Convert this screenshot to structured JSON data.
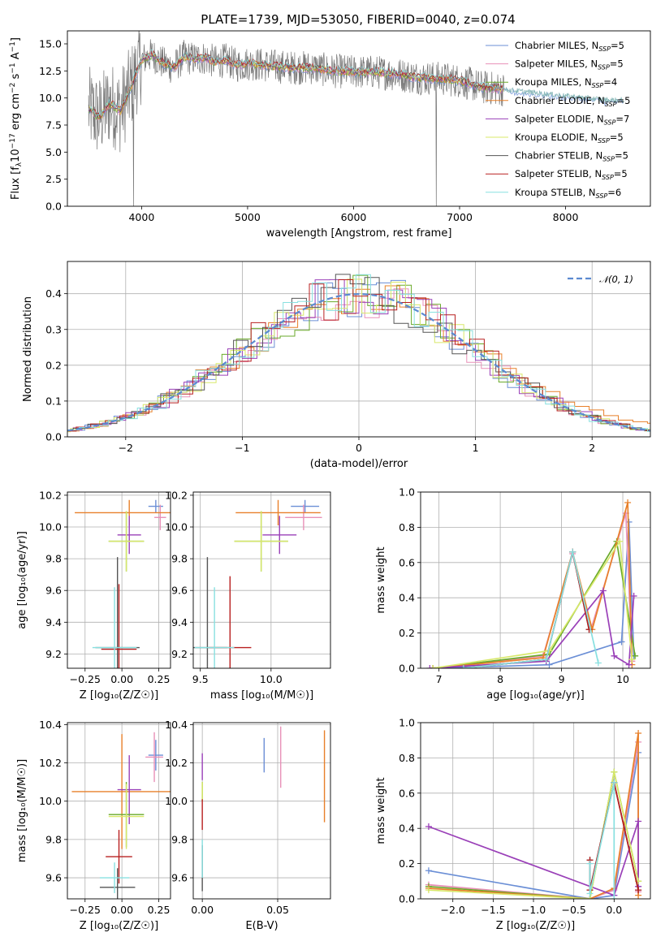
{
  "figure": {
    "title": "PLATE=1739, MJD=53050, FIBERID=0040, z=0.074"
  },
  "legend_entries": [
    {
      "name": "Chabrier MILES, N",
      "sub": "SSP",
      "val": "=5",
      "color": "#6b8fd6"
    },
    {
      "name": "Salpeter MILES, N",
      "sub": "SSP",
      "val": "=5",
      "color": "#e890b8"
    },
    {
      "name": "Kroupa MILES, N",
      "sub": "SSP",
      "val": "=4",
      "color": "#6aaa2a"
    },
    {
      "name": "Chabrier ELODIE, N",
      "sub": "SSP",
      "val": "=5",
      "color": "#e8802a"
    },
    {
      "name": "Salpeter ELODIE, N",
      "sub": "SSP",
      "val": "=7",
      "color": "#9a40b8"
    },
    {
      "name": "Kroupa ELODIE, N",
      "sub": "SSP",
      "val": "=5",
      "color": "#d8e86a"
    },
    {
      "name": "Chabrier STELIB, N",
      "sub": "SSP",
      "val": "=5",
      "color": "#555555"
    },
    {
      "name": "Salpeter STELIB, N",
      "sub": "SSP",
      "val": "=5",
      "color": "#b82020"
    },
    {
      "name": "Kroupa STELIB, N",
      "sub": "SSP",
      "val": "=6",
      "color": "#88e0e0"
    }
  ],
  "chart_data": [
    {
      "id": "spectrum",
      "type": "line",
      "xlabel": "wavelength [Angstrom, rest frame]",
      "ylabel_parts": [
        "Flux [f",
        "λ",
        "10",
        "−17",
        " erg cm",
        "−2",
        " s",
        "−1",
        " A",
        "−1",
        "]"
      ],
      "xlim": [
        3300,
        8800
      ],
      "ylim": [
        0,
        16.2
      ],
      "xticks": [
        4000,
        5000,
        6000,
        7000,
        8000
      ],
      "yticks": [
        0.0,
        2.5,
        5.0,
        7.5,
        10.0,
        12.5,
        15.0
      ],
      "model_curve": {
        "x": [
          3500,
          3600,
          3700,
          3800,
          3900,
          4000,
          4100,
          4200,
          4300,
          4400,
          4500,
          4600,
          4700,
          4800,
          4900,
          5000,
          5200,
          5400,
          5600,
          5800,
          6000,
          6200,
          6400,
          6600,
          6800,
          7000,
          7200,
          7400,
          7600,
          7800,
          8000,
          8200,
          8400
        ],
        "y": [
          9.0,
          8.2,
          9.5,
          8.8,
          11.0,
          13.5,
          14.0,
          13.2,
          12.8,
          13.8,
          13.6,
          13.7,
          13.3,
          13.5,
          13.0,
          13.2,
          13.0,
          12.8,
          12.8,
          12.5,
          12.4,
          12.4,
          12.2,
          11.9,
          11.8,
          11.6,
          11.0,
          10.8,
          10.6,
          10.4,
          10.2,
          10.0,
          9.8
        ]
      }
    },
    {
      "id": "residual-histogram",
      "type": "line",
      "xlabel": "(data-model)/error",
      "ylabel": "Normed distribution",
      "xlim": [
        -2.5,
        2.5
      ],
      "ylim": [
        0,
        0.49
      ],
      "xticks": [
        -2,
        -1,
        0,
        1,
        2
      ],
      "xtick_labels": [
        "−2",
        "−1",
        "0",
        "1",
        "2"
      ],
      "yticks": [
        0.0,
        0.1,
        0.2,
        0.3,
        0.4
      ],
      "legend": "𝒩(0, 1)",
      "gaussian": {
        "mu": 0,
        "sigma": 1
      }
    },
    {
      "id": "age-vs-Z",
      "type": "scatter",
      "xlabel": "Z [log₁₀(Z/Z☉)]",
      "ylabel": "age  [log₁₀(age/yr)]",
      "xlim": [
        -0.37,
        0.33
      ],
      "ylim": [
        9.11,
        10.22
      ],
      "xticks": [
        -0.25,
        0.0,
        0.25
      ],
      "xtick_labels": [
        "−0.25",
        "0.00",
        "0.25"
      ],
      "yticks": [
        9.2,
        9.4,
        9.6,
        9.8,
        10.0,
        10.2
      ],
      "points": [
        {
          "c": "#6b8fd6",
          "x": 0.23,
          "xe": 0.05,
          "y": 10.13,
          "ye": 0.04
        },
        {
          "c": "#e890b8",
          "x": 0.26,
          "xe": 0.04,
          "y": 10.06,
          "ye": 0.08
        },
        {
          "c": "#e8802a",
          "x": 0.05,
          "xe": 0.37,
          "y": 10.09,
          "ye": 0.08
        },
        {
          "c": "#9a40b8",
          "x": 0.05,
          "xe": 0.08,
          "y": 9.95,
          "ye": 0.12
        },
        {
          "c": "#6aaa2a",
          "x": 0.03,
          "xe": 0.12,
          "y": 9.91,
          "ye": 0.19
        },
        {
          "c": "#d8e86a",
          "x": 0.03,
          "xe": 0.12,
          "y": 9.91,
          "ye": 0.19
        },
        {
          "c": "#555555",
          "x": -0.03,
          "xe": 0.15,
          "y": 9.24,
          "ye": 0.57
        },
        {
          "c": "#b82020",
          "x": -0.02,
          "xe": 0.12,
          "y": 9.23,
          "ye": 0.41
        },
        {
          "c": "#88e0e0",
          "x": -0.05,
          "xe": 0.15,
          "y": 9.24,
          "ye": 0.38
        }
      ]
    },
    {
      "id": "age-vs-mass",
      "type": "scatter",
      "xlabel": "mass [log₁₀(M/M☉)]",
      "ylabel": "",
      "xlim": [
        9.45,
        10.42
      ],
      "ylim": [
        9.11,
        10.22
      ],
      "xticks": [
        9.5,
        10.0
      ],
      "xtick_labels": [
        "9.5",
        "10.0"
      ],
      "yticks": [
        9.2,
        9.4,
        9.6,
        9.8,
        10.0,
        10.2
      ],
      "points": [
        {
          "c": "#6b8fd6",
          "x": 10.24,
          "xe": 0.1,
          "y": 10.13,
          "ye": 0.04
        },
        {
          "c": "#e890b8",
          "x": 10.23,
          "xe": 0.13,
          "y": 10.06,
          "ye": 0.08
        },
        {
          "c": "#e8802a",
          "x": 10.05,
          "xe": 0.3,
          "y": 10.09,
          "ye": 0.08
        },
        {
          "c": "#9a40b8",
          "x": 10.06,
          "xe": 0.12,
          "y": 9.95,
          "ye": 0.12
        },
        {
          "c": "#6aaa2a",
          "x": 9.93,
          "xe": 0.19,
          "y": 9.91,
          "ye": 0.19
        },
        {
          "c": "#d8e86a",
          "x": 9.93,
          "xe": 0.19,
          "y": 9.91,
          "ye": 0.19
        },
        {
          "c": "#555555",
          "x": 9.55,
          "xe": 0.14,
          "y": 9.24,
          "ye": 0.57
        },
        {
          "c": "#b82020",
          "x": 9.71,
          "xe": 0.15,
          "y": 9.24,
          "ye": 0.45
        },
        {
          "c": "#88e0e0",
          "x": 9.6,
          "xe": 0.14,
          "y": 9.24,
          "ye": 0.38
        }
      ]
    },
    {
      "id": "massweight-vs-age",
      "type": "line",
      "xlabel": "age  [log₁₀(age/yr)]",
      "ylabel": "mass weight",
      "xlim": [
        6.7,
        10.45
      ],
      "ylim": [
        0,
        1.0
      ],
      "xticks": [
        7,
        8,
        9,
        10
      ],
      "yticks": [
        0.0,
        0.2,
        0.4,
        0.6,
        0.8,
        1.0
      ],
      "series": [
        {
          "c": "#6b8fd6",
          "x": [
            6.9,
            8.8,
            9.98,
            10.1,
            10.18
          ],
          "y": [
            0.0,
            0.02,
            0.15,
            0.83,
            0.07
          ]
        },
        {
          "c": "#e890b8",
          "x": [
            6.9,
            8.7,
            9.18,
            9.48,
            10.05,
            10.15
          ],
          "y": [
            0.0,
            0.07,
            0.65,
            0.22,
            0.88,
            0.04
          ]
        },
        {
          "c": "#6aaa2a",
          "x": [
            6.9,
            8.8,
            9.9,
            10.2
          ],
          "y": [
            0.0,
            0.08,
            0.72,
            0.07
          ]
        },
        {
          "c": "#e8802a",
          "x": [
            6.9,
            8.7,
            9.18,
            9.5,
            10.08,
            10.15
          ],
          "y": [
            0.0,
            0.06,
            0.66,
            0.22,
            0.94,
            0.02
          ]
        },
        {
          "c": "#9a40b8",
          "x": [
            6.85,
            8.75,
            9.68,
            9.86,
            10.1,
            10.18
          ],
          "y": [
            0.0,
            0.04,
            0.44,
            0.07,
            0.02,
            0.41
          ]
        },
        {
          "c": "#d8e86a",
          "x": [
            6.9,
            8.8,
            9.95,
            10.15
          ],
          "y": [
            0.0,
            0.1,
            0.72,
            0.05
          ]
        },
        {
          "c": "#555555",
          "x": [
            7.4,
            8.75,
            9.18,
            9.45
          ],
          "y": [
            0.0,
            0.05,
            0.66,
            0.22
          ]
        },
        {
          "c": "#b82020",
          "x": [
            7.4,
            8.75,
            9.18,
            9.45
          ],
          "y": [
            0.0,
            0.05,
            0.66,
            0.22
          ]
        },
        {
          "c": "#88e0e0",
          "x": [
            7.4,
            8.75,
            9.18,
            9.6
          ],
          "y": [
            0.0,
            0.05,
            0.66,
            0.03
          ]
        }
      ]
    },
    {
      "id": "mass-vs-Z",
      "type": "scatter",
      "xlabel": "Z [log₁₀(Z/Z☉)]",
      "ylabel": "mass [log₁₀(M/M☉)]",
      "xlim": [
        -0.37,
        0.33
      ],
      "ylim": [
        9.49,
        10.41
      ],
      "xticks": [
        -0.25,
        0.0,
        0.25
      ],
      "xtick_labels": [
        "−0.25",
        "0.00",
        "0.25"
      ],
      "yticks": [
        9.6,
        9.8,
        10.0,
        10.2,
        10.4
      ],
      "points": [
        {
          "c": "#6b8fd6",
          "x": 0.23,
          "xe": 0.05,
          "y": 10.24,
          "ye": 0.08
        },
        {
          "c": "#e890b8",
          "x": 0.22,
          "xe": 0.06,
          "y": 10.23,
          "ye": 0.13
        },
        {
          "c": "#e8802a",
          "x": 0.0,
          "xe": 0.34,
          "y": 10.05,
          "ye": 0.3
        },
        {
          "c": "#9a40b8",
          "x": 0.05,
          "xe": 0.08,
          "y": 10.06,
          "ye": 0.18
        },
        {
          "c": "#6aaa2a",
          "x": 0.03,
          "xe": 0.12,
          "y": 9.93,
          "ye": 0.17
        },
        {
          "c": "#d8e86a",
          "x": 0.03,
          "xe": 0.12,
          "y": 9.92,
          "ye": 0.17
        },
        {
          "c": "#555555",
          "x": -0.03,
          "xe": 0.12,
          "y": 9.55,
          "ye": 0.1
        },
        {
          "c": "#b82020",
          "x": -0.02,
          "xe": 0.09,
          "y": 9.71,
          "ye": 0.14
        },
        {
          "c": "#88e0e0",
          "x": -0.05,
          "xe": 0.1,
          "y": 9.6,
          "ye": 0.08
        }
      ]
    },
    {
      "id": "mass-vs-EBV",
      "type": "scatter",
      "xlabel": "E(B-V)",
      "ylabel": "",
      "xlim": [
        -0.006,
        0.085
      ],
      "ylim": [
        9.49,
        10.41
      ],
      "xticks": [
        0.0,
        0.05
      ],
      "xtick_labels": [
        "0.00",
        "0.05"
      ],
      "yticks": [
        9.6,
        9.8,
        10.0,
        10.2,
        10.4
      ],
      "points": [
        {
          "c": "#6b8fd6",
          "x": 0.041,
          "y": 10.24,
          "ye": 0.09
        },
        {
          "c": "#e890b8",
          "x": 0.052,
          "y": 10.23,
          "ye": 0.16
        },
        {
          "c": "#e8802a",
          "x": 0.081,
          "y": 10.13,
          "ye": 0.24
        },
        {
          "c": "#9a40b8",
          "x": 0.0,
          "y": 10.18,
          "ye": 0.07
        },
        {
          "c": "#6aaa2a",
          "x": 0.0,
          "y": 10.05,
          "ye": 0.05
        },
        {
          "c": "#d8e86a",
          "x": 0.0,
          "y": 10.05,
          "ye": 0.05
        },
        {
          "c": "#555555",
          "x": 0.0,
          "y": 9.65,
          "ye": 0.12
        },
        {
          "c": "#b82020",
          "x": 0.0,
          "y": 9.93,
          "ye": 0.08
        },
        {
          "c": "#88e0e0",
          "x": 0.0,
          "y": 9.7,
          "ye": 0.1
        }
      ]
    },
    {
      "id": "massweight-vs-Z",
      "type": "line",
      "xlabel": "Z [log₁₀(Z/Z☉)]",
      "ylabel": "mass weight",
      "xlim": [
        -2.4,
        0.45
      ],
      "ylim": [
        0,
        1.0
      ],
      "xticks": [
        -2.0,
        -1.5,
        -1.0,
        -0.5,
        0.0
      ],
      "xtick_labels": [
        "−2.0",
        "−1.5",
        "−1.0",
        "−0.5",
        "0.0"
      ],
      "yticks": [
        0.0,
        0.2,
        0.4,
        0.6,
        0.8,
        1.0
      ],
      "series": [
        {
          "c": "#6b8fd6",
          "x": [
            -2.3,
            -0.3,
            0.0,
            0.3,
            0.3
          ],
          "y": [
            0.16,
            0.0,
            0.02,
            0.83,
            0.07
          ]
        },
        {
          "c": "#e890b8",
          "x": [
            -2.3,
            -0.3,
            0.0,
            0.3,
            0.3
          ],
          "y": [
            0.08,
            0.0,
            0.05,
            0.89,
            0.04
          ]
        },
        {
          "c": "#6aaa2a",
          "x": [
            -2.3,
            -0.3,
            0.0,
            0.3
          ],
          "y": [
            0.07,
            0.0,
            0.72,
            0.1
          ]
        },
        {
          "c": "#e8802a",
          "x": [
            -2.3,
            -0.3,
            0.0,
            0.3,
            0.3
          ],
          "y": [
            0.06,
            0.0,
            0.06,
            0.94,
            0.02
          ]
        },
        {
          "c": "#9a40b8",
          "x": [
            -2.3,
            0.0,
            0.3,
            0.3
          ],
          "y": [
            0.41,
            0.02,
            0.44,
            0.07
          ]
        },
        {
          "c": "#d8e86a",
          "x": [
            -2.3,
            -0.3,
            0.0,
            0.3
          ],
          "y": [
            0.05,
            0.0,
            0.72,
            0.1
          ]
        },
        {
          "c": "#555555",
          "x": [
            -0.3,
            -0.3,
            0.0,
            0.3
          ],
          "y": [
            0.22,
            0.05,
            0.66,
            0.05
          ]
        },
        {
          "c": "#b82020",
          "x": [
            -0.3,
            -0.3,
            0.0,
            0.3
          ],
          "y": [
            0.22,
            0.05,
            0.66,
            0.05
          ]
        },
        {
          "c": "#88e0e0",
          "x": [
            -0.3,
            -0.3,
            0.0,
            0.0
          ],
          "y": [
            0.2,
            0.03,
            0.66,
            0.0
          ]
        }
      ]
    }
  ]
}
